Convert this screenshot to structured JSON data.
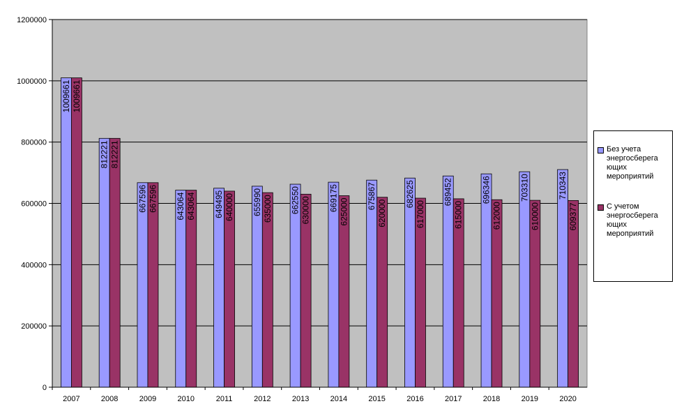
{
  "chart_data": {
    "type": "bar",
    "categories": [
      "2007",
      "2008",
      "2009",
      "2010",
      "2011",
      "2012",
      "2013",
      "2014",
      "2015",
      "2016",
      "2017",
      "2018",
      "2019",
      "2020"
    ],
    "series": [
      {
        "name": "Без учета\nэнергосберега\nющих\nмероприятий",
        "values": [
          1009661,
          812221,
          667596,
          643064,
          649495,
          655990,
          662550,
          669175,
          675867,
          682625,
          689452,
          696346,
          703310,
          710343
        ],
        "labels": [
          "1009661",
          "812221",
          "667596",
          "643064",
          "649495",
          "655990",
          "662550",
          "669175",
          "675867",
          "682625",
          "689452",
          "696346",
          "703310",
          "710343"
        ],
        "color": "#9999FF"
      },
      {
        "name": "С учетом\nэнергосберега\nющих\nмероприятий",
        "values": [
          1009661,
          812221,
          667596,
          643064,
          640000,
          635000,
          630000,
          625000,
          620000,
          617000,
          615000,
          612000,
          610000,
          609377
        ],
        "labels": [
          "1009661",
          "812221",
          "667596",
          "643064",
          "640000",
          "635000",
          "630000",
          "625000",
          "620000",
          "617000",
          "615000",
          "612000",
          "610000",
          "609377"
        ],
        "color": "#993366"
      }
    ],
    "y_ticks": [
      "0",
      "200000",
      "400000",
      "600000",
      "800000",
      "1000000",
      "1200000"
    ],
    "ylim": [
      0,
      1200000
    ],
    "grid": true,
    "plot_background": "#C0C0C0",
    "legend_position": "right"
  }
}
